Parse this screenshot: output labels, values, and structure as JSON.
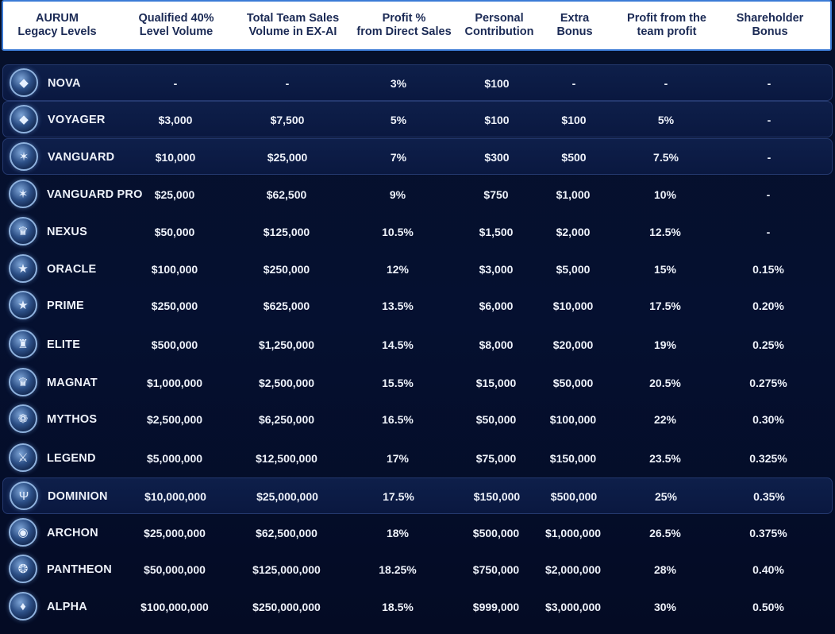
{
  "headers": [
    [
      "AURUM",
      "Legacy Levels"
    ],
    [
      "Qualified 40%",
      "Level Volume"
    ],
    [
      "Total Team Sales",
      "Volume in EX-AI"
    ],
    [
      "Profit %",
      "from Direct Sales"
    ],
    [
      "Personal",
      "Contribution"
    ],
    [
      "Extra",
      "Bonus"
    ],
    [
      "Profit from the",
      "team profit"
    ],
    [
      "Shareholder",
      "Bonus"
    ]
  ],
  "rows": [
    {
      "name": "NOVA",
      "icon": "shield-icon",
      "highlighted": true,
      "cells": [
        "-",
        "-",
        "3%",
        "$100",
        "-",
        "-",
        "-"
      ]
    },
    {
      "name": "VOYAGER",
      "icon": "shield-icon",
      "highlighted": true,
      "cells": [
        "$3,000",
        "$7,500",
        "5%",
        "$100",
        "$100",
        "5%",
        "-"
      ]
    },
    {
      "name": "VANGUARD",
      "icon": "star-icon",
      "highlighted": true,
      "cells": [
        "$10,000",
        "$25,000",
        "7%",
        "$300",
        "$500",
        "7.5%",
        "-"
      ]
    },
    {
      "name": "VANGUARD PRO",
      "icon": "star-icon",
      "highlighted": false,
      "cells": [
        "$25,000",
        "$62,500",
        "9%",
        "$750",
        "$1,000",
        "10%",
        "-"
      ]
    },
    {
      "name": "NEXUS",
      "icon": "crown-icon",
      "highlighted": false,
      "cells": [
        "$50,000",
        "$125,000",
        "10.5%",
        "$1,500",
        "$2,000",
        "12.5%",
        "-"
      ]
    },
    {
      "name": "ORACLE",
      "icon": "trophy-icon",
      "highlighted": false,
      "cells": [
        "$100,000",
        "$250,000",
        "12%",
        "$3,000",
        "$5,000",
        "15%",
        "0.15%"
      ]
    },
    {
      "name": "PRIME",
      "icon": "trophy-icon",
      "highlighted": false,
      "cells": [
        "$250,000",
        "$625,000",
        "13.5%",
        "$6,000",
        "$10,000",
        "17.5%",
        "0.20%"
      ]
    },
    {
      "name": "ELITE",
      "icon": "castle-icon",
      "highlighted": false,
      "cells": [
        "$500,000",
        "$1,250,000",
        "14.5%",
        "$8,000",
        "$20,000",
        "19%",
        "0.25%"
      ]
    },
    {
      "name": "MAGNAT",
      "icon": "crown-icon",
      "highlighted": false,
      "cells": [
        "$1,000,000",
        "$2,500,000",
        "15.5%",
        "$15,000",
        "$50,000",
        "20.5%",
        "0.275%"
      ]
    },
    {
      "name": "MYTHOS",
      "icon": "eagle-icon",
      "highlighted": false,
      "cells": [
        "$2,500,000",
        "$6,250,000",
        "16.5%",
        "$50,000",
        "$100,000",
        "22%",
        "0.30%"
      ]
    },
    {
      "name": "LEGEND",
      "icon": "swords-icon",
      "highlighted": false,
      "cells": [
        "$5,000,000",
        "$12,500,000",
        "17%",
        "$75,000",
        "$150,000",
        "23.5%",
        "0.325%"
      ]
    },
    {
      "name": "DOMINION",
      "icon": "trident-icon",
      "highlighted": true,
      "cells": [
        "$10,000,000",
        "$25,000,000",
        "17.5%",
        "$150,000",
        "$500,000",
        "25%",
        "0.35%"
      ]
    },
    {
      "name": "ARCHON",
      "icon": "globe-icon",
      "highlighted": false,
      "cells": [
        "$25,000,000",
        "$62,500,000",
        "18%",
        "$500,000",
        "$1,000,000",
        "26.5%",
        "0.375%"
      ]
    },
    {
      "name": "PANTHEON",
      "icon": "lion-icon",
      "highlighted": false,
      "cells": [
        "$50,000,000",
        "$125,000,000",
        "18.25%",
        "$750,000",
        "$2,000,000",
        "28%",
        "0.40%"
      ]
    },
    {
      "name": "ALPHA",
      "icon": "diamond-icon",
      "highlighted": false,
      "cells": [
        "$100,000,000",
        "$250,000,000",
        "18.5%",
        "$999,000",
        "$3,000,000",
        "30%",
        "0.50%"
      ]
    }
  ]
}
